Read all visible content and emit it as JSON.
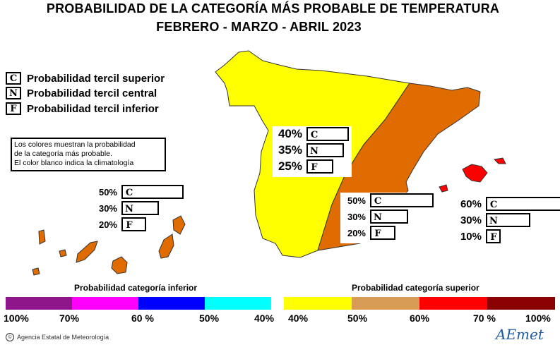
{
  "title_line1": "PROBABILIDAD DE LA CATEGORÍA MÁS PROBABLE DE TEMPERATURA",
  "title_line2": "FEBRERO - MARZO - ABRIL 2023",
  "legend": [
    {
      "letter": "C",
      "label": "Probabilidad  tercil superior"
    },
    {
      "letter": "N",
      "label": "Probabilidad  tercil central"
    },
    {
      "letter": "F",
      "label": "Probabilidad  tercil inferior"
    }
  ],
  "note": [
    "Los colores muestran la probabilidad",
    "de la categoría más probable.",
    "El color blanco indica la climatología"
  ],
  "regions": {
    "canarias": {
      "C": "50%",
      "N": "30%",
      "F": "20%",
      "Cv": 50,
      "Nv": 30,
      "Fv": 20
    },
    "west": {
      "C": "40%",
      "N": "35%",
      "F": "25%",
      "Cv": 40,
      "Nv": 35,
      "Fv": 25
    },
    "east": {
      "C": "50%",
      "N": "30%",
      "F": "20%",
      "Cv": 50,
      "Nv": 30,
      "Fv": 20
    },
    "baleares": {
      "C": "60%",
      "N": "30%",
      "F": "10%",
      "Cv": 60,
      "Nv": 30,
      "Fv": 10
    }
  },
  "scale": {
    "lower_label": "Probabilidad categoría inferior",
    "upper_label": "Probabilidad categoría superior",
    "lower_colors": [
      "#8e168a",
      "#ff00ff",
      "#0000ff",
      "#00ffff"
    ],
    "upper_colors": [
      "#ffff00",
      "#d89c57",
      "#ff0000",
      "#8b0000"
    ],
    "lower_ticks": [
      "100%",
      "70%",
      "60 %",
      "50%",
      "40%"
    ],
    "upper_ticks": [
      "40%",
      "50%",
      "60%",
      "70 %",
      "100%"
    ]
  },
  "map_colors": {
    "yellow": "#ffff00",
    "orange": "#e06c00",
    "red": "#ff0000"
  },
  "footer": "Agencia Estatal de Meteorología",
  "logo": "AEmet"
}
